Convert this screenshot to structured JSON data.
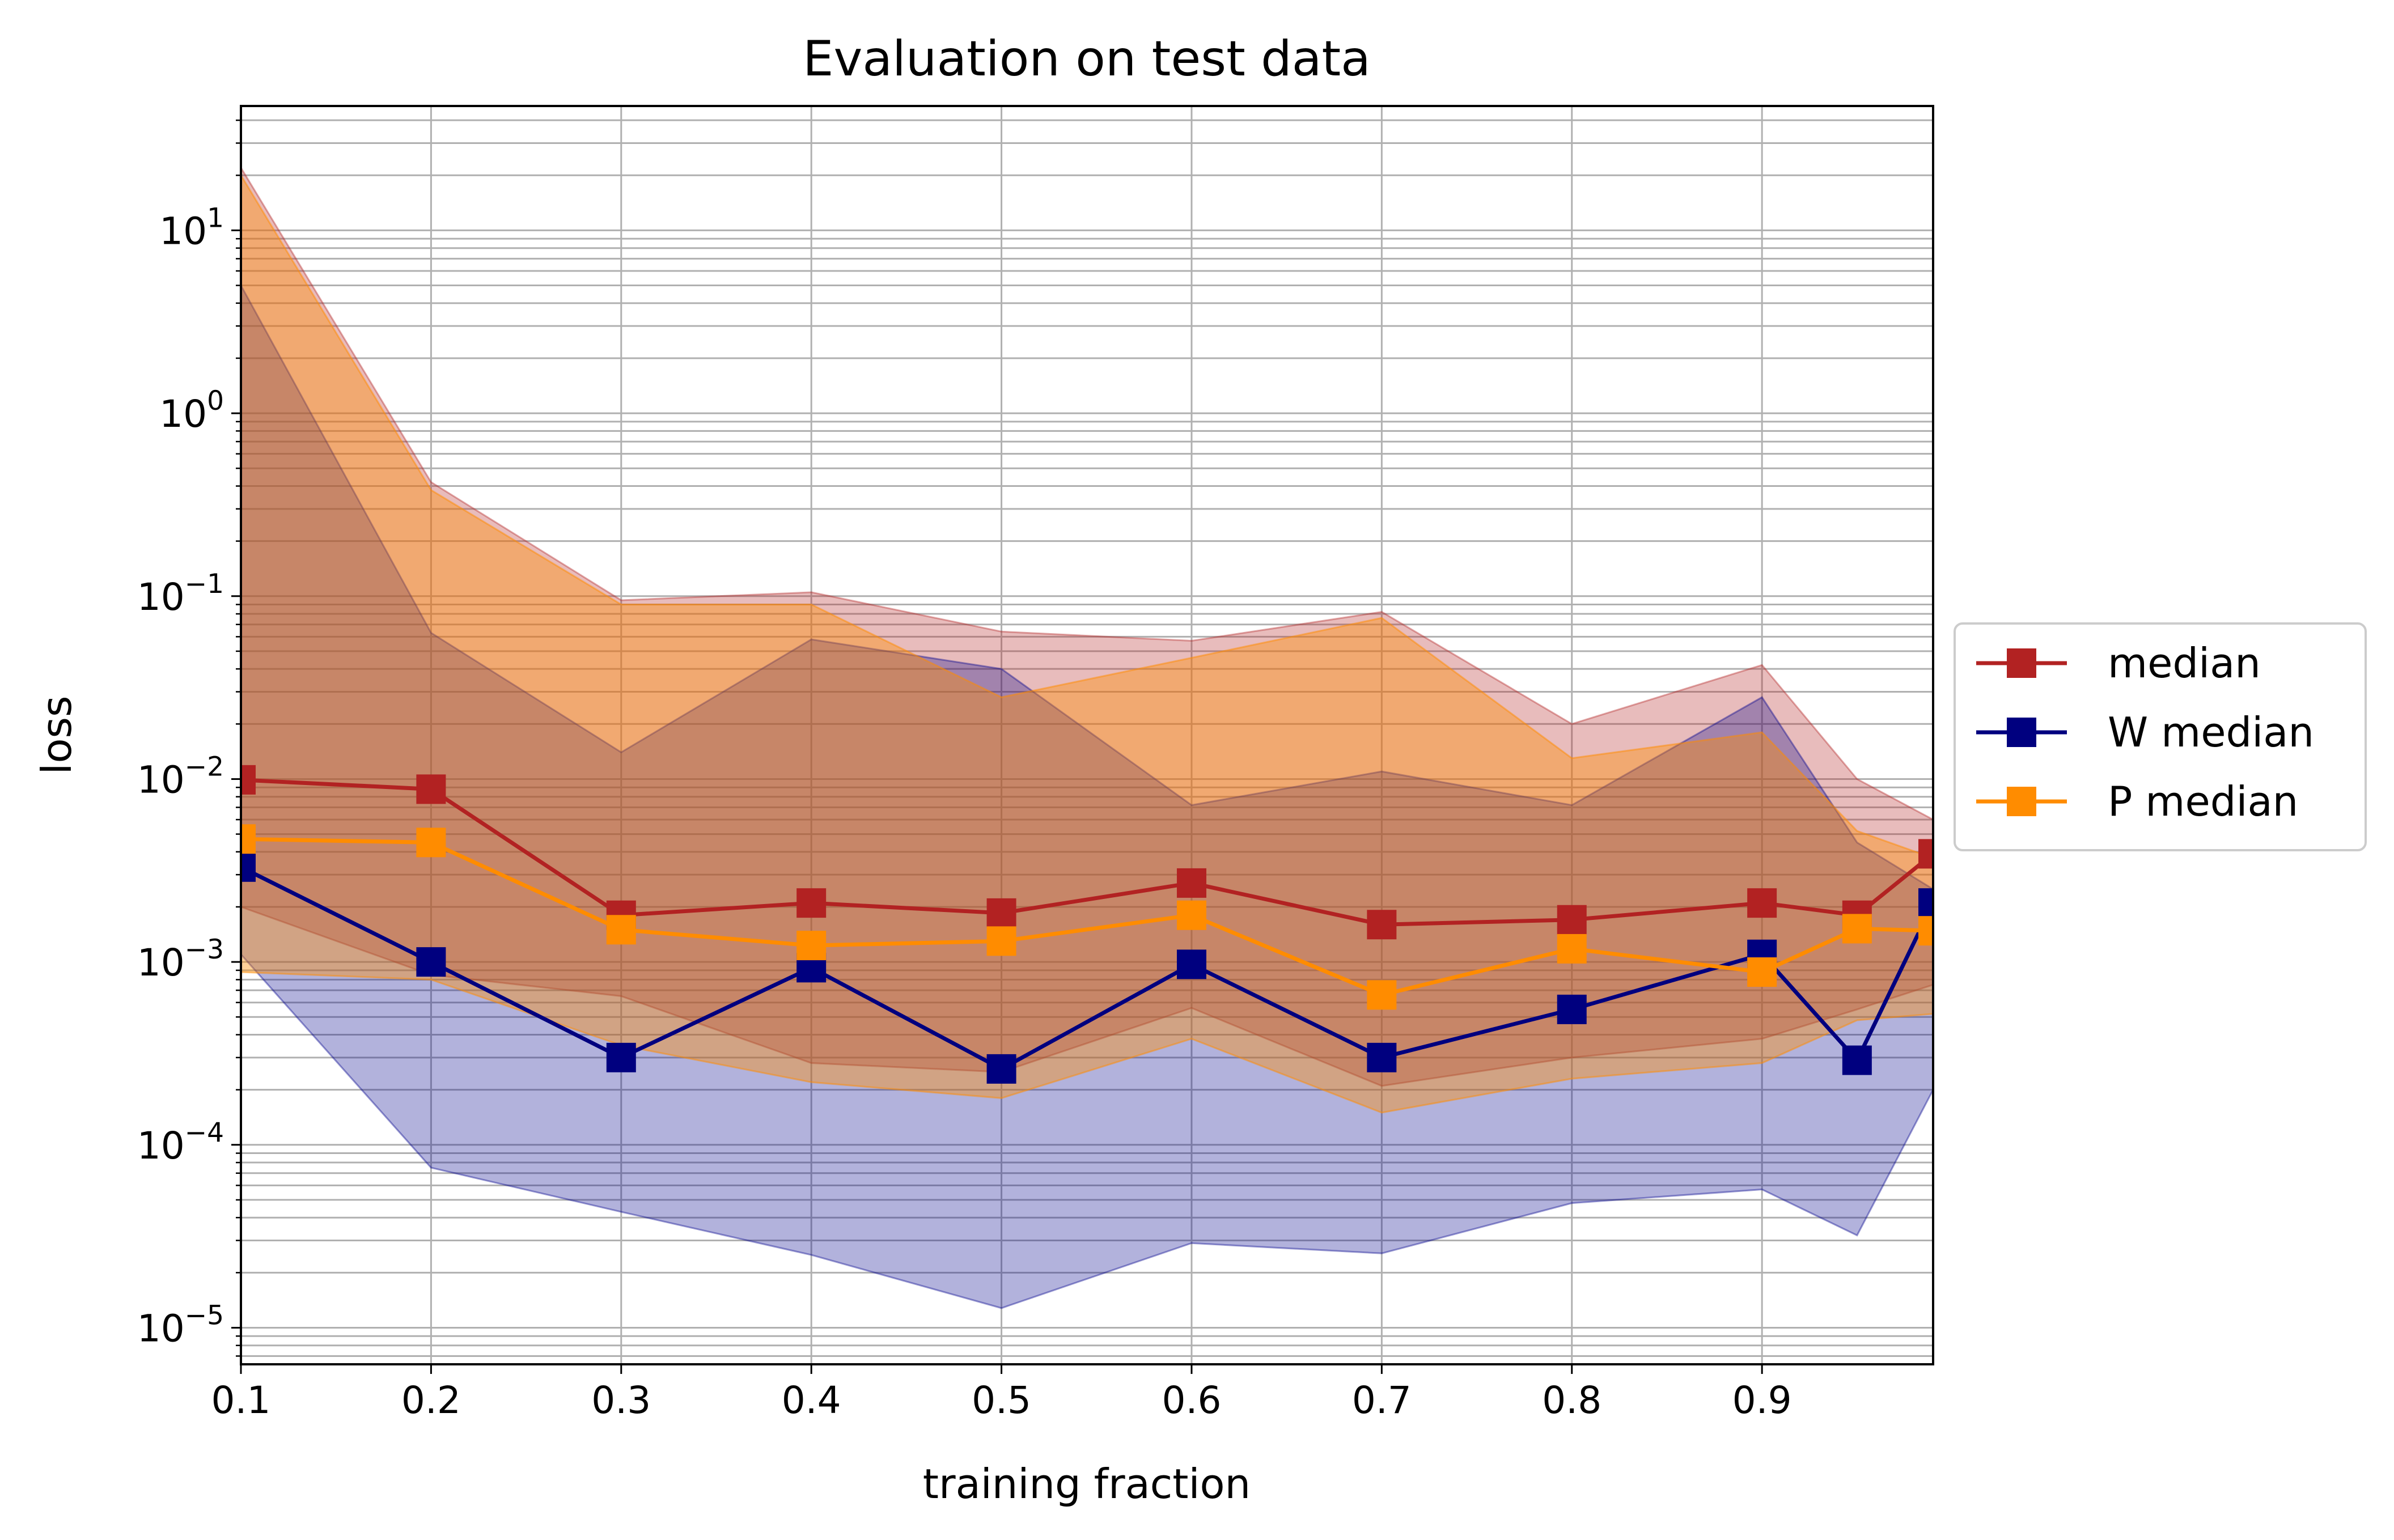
{
  "chart_data": {
    "type": "line",
    "title": "Evaluation on test data",
    "xlabel": "training fraction",
    "ylabel": "loss",
    "yscale": "log",
    "xlim": [
      0.1,
      0.99
    ],
    "ylim_exponent": [
      -5.2,
      1.68
    ],
    "grid": "major and minor",
    "legend_position": "outside right",
    "x": [
      0.1,
      0.2,
      0.3,
      0.4,
      0.5,
      0.6,
      0.7,
      0.8,
      0.9,
      0.95,
      0.99
    ],
    "x_ticks": [
      {
        "value": 0.1,
        "label": "0.1"
      },
      {
        "value": 0.2,
        "label": "0.2"
      },
      {
        "value": 0.3,
        "label": "0.3"
      },
      {
        "value": 0.4,
        "label": "0.4"
      },
      {
        "value": 0.5,
        "label": "0.5"
      },
      {
        "value": 0.6,
        "label": "0.6"
      },
      {
        "value": 0.7,
        "label": "0.7"
      },
      {
        "value": 0.8,
        "label": "0.8"
      },
      {
        "value": 0.9,
        "label": "0.9"
      }
    ],
    "y_ticks": [
      {
        "exponent": -5,
        "base": "10",
        "sup": "−5"
      },
      {
        "exponent": -4,
        "base": "10",
        "sup": "−4"
      },
      {
        "exponent": -3,
        "base": "10",
        "sup": "−3"
      },
      {
        "exponent": -2,
        "base": "10",
        "sup": "−2"
      },
      {
        "exponent": -1,
        "base": "10",
        "sup": "−1"
      },
      {
        "exponent": 0,
        "base": "10",
        "sup": "0"
      },
      {
        "exponent": 1,
        "base": "10",
        "sup": "1"
      }
    ],
    "bands": [
      {
        "color": "#b22222",
        "opacity": 0.3,
        "upper": [
          22,
          0.42,
          0.095,
          0.105,
          0.064,
          0.057,
          0.082,
          0.02,
          0.042,
          0.01,
          0.006
        ],
        "lower": [
          0.002,
          0.00085,
          0.00065,
          0.00028,
          0.00025,
          0.00056,
          0.00021,
          0.0003,
          0.00038,
          0.00055,
          0.00075
        ]
      },
      {
        "color": "#00008b",
        "opacity": 0.3,
        "upper": [
          5,
          0.063,
          0.014,
          0.058,
          0.04,
          0.0072,
          0.011,
          0.0072,
          0.028,
          0.0045,
          0.0025
        ],
        "lower": [
          0.0011,
          7.5e-05,
          4.3e-05,
          2.5e-05,
          1.28e-05,
          2.9e-05,
          2.55e-05,
          4.8e-05,
          5.7e-05,
          3.2e-05,
          0.0002
        ]
      },
      {
        "color": "#ff8c00",
        "opacity": 0.4,
        "upper": [
          20,
          0.38,
          0.09,
          0.09,
          0.028,
          0.046,
          0.076,
          0.013,
          0.018,
          0.0052,
          0.0037
        ],
        "lower": [
          0.00088,
          0.0008,
          0.00035,
          0.00022,
          0.00018,
          0.00038,
          0.00015,
          0.00023,
          0.00028,
          0.00048,
          0.00052
        ]
      }
    ],
    "series": [
      {
        "name": "median",
        "color": "#b22222",
        "values": [
          0.0099,
          0.0088,
          0.0018,
          0.0021,
          0.00185,
          0.0027,
          0.0016,
          0.0017,
          0.0021,
          0.0018,
          0.0039
        ]
      },
      {
        "name": "W median",
        "color": "#00007f",
        "values": [
          0.0033,
          0.001,
          0.0003,
          0.00093,
          0.00026,
          0.00097,
          0.0003,
          0.00055,
          0.0011,
          0.00029,
          0.0021
        ]
      },
      {
        "name": "P median",
        "color": "#ff8c00",
        "values": [
          0.0047,
          0.0045,
          0.0015,
          0.00123,
          0.0013,
          0.0018,
          0.00066,
          0.00118,
          0.00088,
          0.00152,
          0.00148
        ]
      }
    ]
  }
}
